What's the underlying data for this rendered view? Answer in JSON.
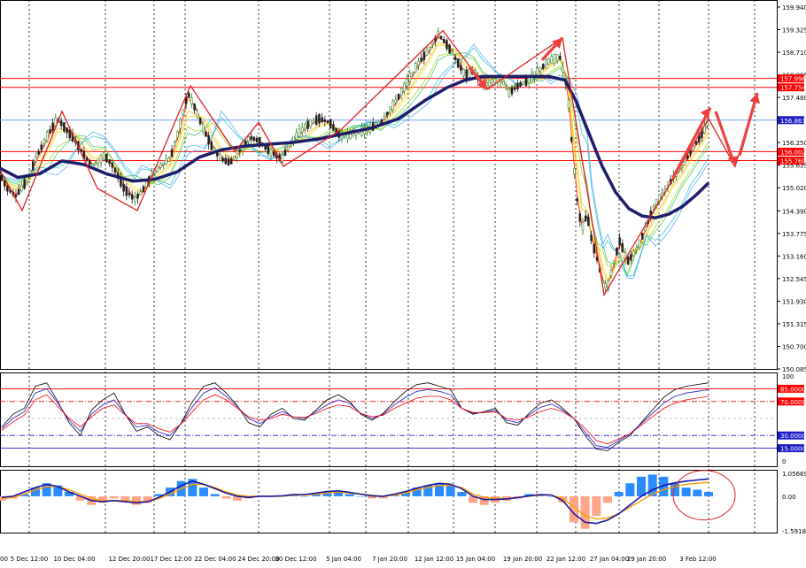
{
  "chart_data": [
    {
      "type": "candlestick",
      "ylim": [
        150.085,
        159.94
      ],
      "price_ticks": [
        "159.940",
        "159.325",
        "158.710",
        "158.095",
        "157.480",
        "156.250",
        "155.635",
        "155.020",
        "154.390",
        "153.775",
        "153.160",
        "152.545",
        "151.930",
        "151.315",
        "150.700",
        "150.085"
      ],
      "highlighted_labels": [
        {
          "text": "157.996",
          "value": 157.996,
          "color": "#ff0000"
        },
        {
          "text": "157.754",
          "value": 157.754,
          "color": "#ff0000"
        },
        {
          "text": "156.861",
          "value": 156.861,
          "color": "#1c1cc8"
        },
        {
          "text": "156.002",
          "value": 156.002,
          "color": "#ff0000"
        },
        {
          "text": "155.760",
          "value": 155.76,
          "color": "#ff0000"
        }
      ],
      "horizontal_levels": [
        {
          "value": 157.996,
          "color": "#ff0000"
        },
        {
          "value": 157.754,
          "color": "#ff0000"
        },
        {
          "value": 156.861,
          "color": "#7aa0ff"
        },
        {
          "value": 156.002,
          "color": "#ff0000"
        },
        {
          "value": 155.76,
          "color": "#ff0000"
        }
      ],
      "close_path": [
        [
          0,
          155.4
        ],
        [
          8,
          155.0
        ],
        [
          18,
          154.8
        ],
        [
          30,
          155.2
        ],
        [
          42,
          155.9
        ],
        [
          55,
          156.5
        ],
        [
          65,
          156.9
        ],
        [
          75,
          156.6
        ],
        [
          85,
          156.3
        ],
        [
          95,
          155.9
        ],
        [
          105,
          155.6
        ],
        [
          118,
          155.9
        ],
        [
          128,
          155.6
        ],
        [
          140,
          155.0
        ],
        [
          152,
          154.7
        ],
        [
          160,
          154.9
        ],
        [
          170,
          155.3
        ],
        [
          180,
          155.6
        ],
        [
          192,
          155.8
        ],
        [
          202,
          156.6
        ],
        [
          212,
          157.6
        ],
        [
          220,
          157.2
        ],
        [
          230,
          156.6
        ],
        [
          240,
          156.1
        ],
        [
          250,
          155.8
        ],
        [
          260,
          155.7
        ],
        [
          270,
          156.0
        ],
        [
          282,
          156.4
        ],
        [
          292,
          156.3
        ],
        [
          305,
          156.0
        ],
        [
          318,
          155.8
        ],
        [
          330,
          156.3
        ],
        [
          345,
          156.7
        ],
        [
          360,
          156.9
        ],
        [
          372,
          156.8
        ],
        [
          385,
          156.4
        ],
        [
          400,
          156.5
        ],
        [
          415,
          156.6
        ],
        [
          430,
          156.8
        ],
        [
          445,
          157.3
        ],
        [
          460,
          157.9
        ],
        [
          472,
          158.4
        ],
        [
          485,
          158.8
        ],
        [
          495,
          159.2
        ],
        [
          505,
          158.9
        ],
        [
          515,
          158.5
        ],
        [
          525,
          158.1
        ],
        [
          535,
          158.2
        ],
        [
          545,
          157.8
        ],
        [
          555,
          157.9
        ],
        [
          565,
          158.0
        ],
        [
          575,
          157.6
        ],
        [
          585,
          157.8
        ],
        [
          600,
          158.0
        ],
        [
          612,
          158.3
        ],
        [
          622,
          158.5
        ],
        [
          632,
          158.6
        ],
        [
          638,
          158.0
        ],
        [
          642,
          157.3
        ],
        [
          647,
          155.8
        ],
        [
          652,
          154.6
        ],
        [
          657,
          153.9
        ],
        [
          663,
          154.3
        ],
        [
          668,
          153.6
        ],
        [
          675,
          153.0
        ],
        [
          681,
          152.4
        ],
        [
          686,
          152.3
        ],
        [
          692,
          152.9
        ],
        [
          700,
          153.6
        ],
        [
          708,
          153.0
        ],
        [
          715,
          153.2
        ],
        [
          722,
          153.5
        ],
        [
          730,
          154.0
        ],
        [
          740,
          154.6
        ],
        [
          750,
          154.9
        ],
        [
          760,
          155.3
        ],
        [
          770,
          155.6
        ],
        [
          780,
          156.0
        ],
        [
          790,
          156.4
        ],
        [
          800,
          156.8
        ]
      ],
      "ma_path": [
        [
          0,
          155.55
        ],
        [
          20,
          155.3
        ],
        [
          45,
          155.4
        ],
        [
          70,
          155.75
        ],
        [
          95,
          155.65
        ],
        [
          120,
          155.4
        ],
        [
          150,
          155.2
        ],
        [
          175,
          155.25
        ],
        [
          200,
          155.45
        ],
        [
          225,
          155.85
        ],
        [
          250,
          156.05
        ],
        [
          275,
          156.15
        ],
        [
          300,
          156.2
        ],
        [
          330,
          156.25
        ],
        [
          360,
          156.35
        ],
        [
          390,
          156.5
        ],
        [
          420,
          156.65
        ],
        [
          450,
          156.9
        ],
        [
          480,
          157.4
        ],
        [
          505,
          157.75
        ],
        [
          525,
          157.95
        ],
        [
          545,
          158.05
        ],
        [
          570,
          158.05
        ],
        [
          600,
          158.05
        ],
        [
          620,
          158.05
        ],
        [
          638,
          157.95
        ],
        [
          650,
          157.4
        ],
        [
          665,
          156.5
        ],
        [
          680,
          155.6
        ],
        [
          695,
          154.9
        ],
        [
          710,
          154.45
        ],
        [
          725,
          154.25
        ],
        [
          740,
          154.2
        ],
        [
          755,
          154.3
        ],
        [
          770,
          154.5
        ],
        [
          785,
          154.8
        ],
        [
          800,
          155.15
        ]
      ],
      "trend_arrows": [
        [
          [
            0,
            155.5
          ],
          [
            25,
            154.4
          ],
          [
            70,
            157.1
          ],
          [
            110,
            155.0
          ],
          [
            155,
            154.4
          ],
          [
            215,
            157.8
          ],
          [
            265,
            156.0
          ],
          [
            292,
            156.8
          ],
          [
            320,
            155.6
          ],
          [
            385,
            156.6
          ],
          [
            500,
            159.3
          ],
          [
            550,
            157.7
          ],
          [
            635,
            159.1
          ],
          [
            682,
            152.1
          ],
          [
            800,
            156.9
          ],
          [
            830,
            155.6
          ],
          [
            855,
            157.6
          ]
        ]
      ],
      "arrow_heads": [
        {
          "at": [
            550,
            157.7
          ],
          "from": [
            530,
            158.3
          ]
        },
        {
          "at": [
            635,
            159.1
          ],
          "from": [
            615,
            158.6
          ]
        },
        {
          "at": [
            802,
            157.2
          ],
          "from": [
            790,
            156.8
          ]
        },
        {
          "at": [
            830,
            155.6
          ],
          "from": [
            818,
            156.7
          ]
        },
        {
          "at": [
            855,
            157.6
          ],
          "from": [
            844,
            156.6
          ]
        }
      ],
      "x_ticks": [
        "5 Dec 12:00",
        "10 Dec 04:00",
        "12 Dec 20:00",
        "17 Dec 12:00",
        "22 Dec 04:00",
        "24 Dec 20:00",
        "30 Dec 12:00",
        "5 Jan 04:00",
        "7 Jan 20:00",
        "12 Jan 12:00",
        "15 Jan 04:00",
        "19 Jan 20:00",
        "22 Jan 12:00",
        "27 Jan 04:00",
        "29 Jan 20:00",
        "3 Feb 12:00"
      ],
      "x_tick_edge_label": "00"
    },
    {
      "type": "line",
      "name": "stochastic oscillator",
      "ylim": [
        0,
        100
      ],
      "y_ticks": [
        "100",
        "0"
      ],
      "levels": [
        {
          "value": 85,
          "label": "85.0000",
          "color": "#ff0000",
          "style": "solid"
        },
        {
          "value": 70,
          "label": "70.0000",
          "color": "#ff0000",
          "style": "dashdot"
        },
        {
          "value": 30,
          "label": "30.0000",
          "color": "#1c1cc8",
          "style": "dashdot"
        },
        {
          "value": 15,
          "label": "15.0000",
          "color": "#1c1cc8",
          "style": "solid"
        }
      ],
      "series": [
        {
          "color": "#000000",
          "values": [
            40,
            55,
            62,
            88,
            92,
            70,
            45,
            30,
            60,
            72,
            80,
            55,
            35,
            40,
            30,
            25,
            45,
            70,
            88,
            92,
            80,
            65,
            45,
            40,
            55,
            62,
            50,
            48,
            60,
            72,
            78,
            70,
            55,
            48,
            56,
            70,
            82,
            90,
            92,
            88,
            84,
            62,
            55,
            58,
            62,
            45,
            42,
            56,
            68,
            72,
            62,
            50,
            30,
            14,
            12,
            22,
            30,
            45,
            60,
            75,
            84,
            88,
            90,
            92
          ]
        },
        {
          "color": "#1c1cc8",
          "values": [
            38,
            50,
            58,
            80,
            85,
            68,
            48,
            35,
            55,
            66,
            72,
            55,
            40,
            42,
            34,
            30,
            44,
            64,
            80,
            86,
            76,
            64,
            50,
            44,
            52,
            58,
            52,
            50,
            58,
            66,
            72,
            68,
            56,
            50,
            55,
            66,
            75,
            82,
            84,
            82,
            78,
            62,
            56,
            57,
            60,
            48,
            45,
            54,
            63,
            67,
            60,
            50,
            34,
            18,
            16,
            24,
            32,
            44,
            56,
            68,
            76,
            80,
            82,
            84
          ]
        },
        {
          "color": "#ff0000",
          "values": [
            36,
            46,
            54,
            72,
            78,
            64,
            50,
            40,
            52,
            62,
            66,
            54,
            44,
            44,
            38,
            34,
            44,
            58,
            72,
            78,
            72,
            62,
            52,
            48,
            50,
            55,
            52,
            51,
            56,
            62,
            66,
            64,
            56,
            52,
            54,
            62,
            68,
            74,
            76,
            76,
            72,
            62,
            57,
            57,
            58,
            50,
            48,
            52,
            58,
            62,
            58,
            50,
            38,
            24,
            20,
            26,
            32,
            42,
            52,
            62,
            68,
            72,
            74,
            76
          ]
        }
      ]
    },
    {
      "type": "bar",
      "name": "MACD",
      "ylim": [
        -1.59189,
        1.05669
      ],
      "y_ticks": [
        "1.05669",
        "0.00",
        "-1.59189"
      ],
      "series": [
        {
          "name": "histogram",
          "colors": {
            "positive": "#2a8cff",
            "negative": "#ffa58a"
          },
          "values": [
            -0.2,
            -0.1,
            0.1,
            0.4,
            0.6,
            0.5,
            0.2,
            -0.2,
            -0.4,
            -0.3,
            -0.1,
            -0.2,
            -0.4,
            -0.3,
            0.1,
            0.4,
            0.7,
            0.8,
            0.4,
            0.1,
            -0.1,
            -0.2,
            -0.1,
            0.0,
            0.0,
            0.0,
            0.1,
            0.0,
            0.1,
            0.2,
            0.2,
            0.1,
            0.0,
            -0.1,
            -0.1,
            0.1,
            0.2,
            0.4,
            0.5,
            0.6,
            0.5,
            0.2,
            -0.3,
            -0.4,
            -0.3,
            -0.2,
            -0.1,
            0.1,
            0.1,
            0.0,
            -0.3,
            -1.2,
            -1.5,
            -0.9,
            -0.3,
            0.2,
            0.6,
            0.9,
            1.0,
            0.9,
            0.6,
            0.4,
            0.3,
            0.2
          ]
        },
        {
          "name": "signal",
          "color": "#ff9a00",
          "values": [
            -0.1,
            -0.05,
            0.1,
            0.3,
            0.45,
            0.45,
            0.3,
            0.1,
            -0.1,
            -0.2,
            -0.2,
            -0.2,
            -0.25,
            -0.25,
            -0.1,
            0.1,
            0.35,
            0.55,
            0.55,
            0.4,
            0.2,
            0.05,
            0.0,
            0.0,
            0.0,
            0.0,
            0.05,
            0.05,
            0.1,
            0.15,
            0.2,
            0.15,
            0.1,
            0.05,
            0.0,
            0.05,
            0.15,
            0.3,
            0.4,
            0.5,
            0.5,
            0.4,
            0.1,
            -0.05,
            -0.1,
            -0.1,
            -0.05,
            0.0,
            0.05,
            0.05,
            -0.1,
            -0.5,
            -0.9,
            -1.05,
            -1.0,
            -0.8,
            -0.5,
            -0.2,
            0.1,
            0.3,
            0.45,
            0.55,
            0.6,
            0.65
          ]
        },
        {
          "name": "macd",
          "color": "#1616a0",
          "values": [
            -0.05,
            0.0,
            0.2,
            0.4,
            0.55,
            0.45,
            0.2,
            0.0,
            -0.2,
            -0.25,
            -0.2,
            -0.25,
            -0.3,
            -0.25,
            -0.05,
            0.2,
            0.5,
            0.7,
            0.55,
            0.35,
            0.15,
            0.0,
            -0.05,
            0.0,
            0.0,
            0.02,
            0.08,
            0.08,
            0.15,
            0.22,
            0.25,
            0.18,
            0.1,
            0.02,
            0.0,
            0.1,
            0.22,
            0.38,
            0.5,
            0.6,
            0.55,
            0.35,
            0.0,
            -0.15,
            -0.15,
            -0.12,
            -0.06,
            0.02,
            0.08,
            0.06,
            -0.2,
            -0.8,
            -1.2,
            -1.25,
            -1.1,
            -0.8,
            -0.4,
            0.0,
            0.3,
            0.5,
            0.62,
            0.7,
            0.75,
            0.8
          ]
        }
      ],
      "annotation": {
        "shape": "ellipse",
        "color": "#e02020"
      }
    }
  ]
}
